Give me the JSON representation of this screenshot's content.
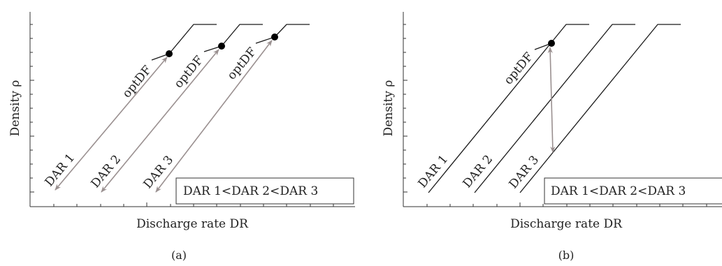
{
  "panels": [
    {
      "id": "a",
      "caption": "(a)",
      "xlabel": "Discharge rate DR",
      "ylabel": "Density ρ",
      "legend": "DAR 1<DAR 2<DAR 3",
      "curve_labels": [
        "DAR 1",
        "DAR 2",
        "DAR 3"
      ],
      "opt_labels": [
        "optDF",
        "optDF",
        "optDF"
      ]
    },
    {
      "id": "b",
      "caption": "(b)",
      "xlabel": "Discharge rate DR",
      "ylabel": "Density ρ",
      "legend": "DAR 1<DAR 2<DAR 3",
      "curve_labels": [
        "DAR 1",
        "DAR 2",
        "DAR 3"
      ],
      "opt_labels": [
        "optDF"
      ]
    }
  ],
  "colors": {
    "line": "#1a1a1a",
    "arrow": "#9a9090",
    "axis": "#333333"
  }
}
